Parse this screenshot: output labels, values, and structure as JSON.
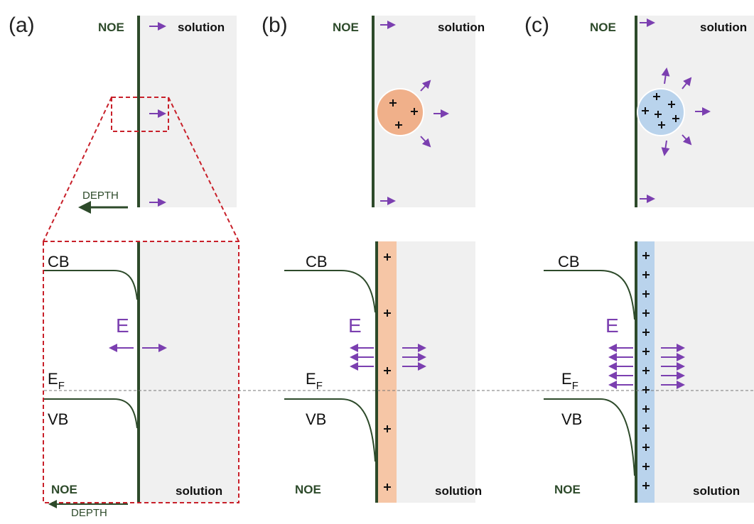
{
  "panels": [
    {
      "label": "(a)",
      "top": {
        "electrode": "NOE",
        "medium": "solution",
        "axis": "DEPTH"
      },
      "bottom": {
        "cb": "CB",
        "field": "E",
        "fermi": {
          "main": "E",
          "sub": "F"
        },
        "vb": "VB",
        "electrode": "NOE",
        "medium": "solution",
        "axis": "DEPTH"
      }
    },
    {
      "label": "(b)",
      "top": {
        "electrode": "NOE",
        "medium": "solution"
      },
      "bottom": {
        "cb": "CB",
        "field": "E",
        "fermi": {
          "main": "E",
          "sub": "F"
        },
        "vb": "VB",
        "electrode": "NOE",
        "medium": "solution"
      }
    },
    {
      "label": "(c)",
      "top": {
        "electrode": "NOE",
        "medium": "solution"
      },
      "bottom": {
        "cb": "CB",
        "field": "E",
        "fermi": {
          "main": "E",
          "sub": "F"
        },
        "vb": "VB",
        "electrode": "NOE",
        "medium": "solution"
      }
    }
  ]
}
